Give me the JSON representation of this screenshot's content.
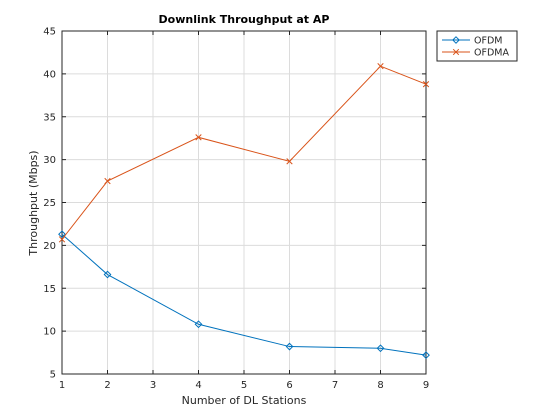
{
  "chart_data": {
    "type": "line",
    "title": "Downlink Throughput at AP",
    "xlabel": "Number of DL Stations",
    "ylabel": "Throughput (Mbps)",
    "xlim": [
      1,
      9
    ],
    "ylim": [
      5,
      45
    ],
    "xticks": [
      1,
      2,
      3,
      4,
      5,
      6,
      7,
      8,
      9
    ],
    "yticks": [
      5,
      10,
      15,
      20,
      25,
      30,
      35,
      40,
      45
    ],
    "grid": true,
    "legend_position": "outside-top-right",
    "series": [
      {
        "name": "OFDM",
        "color": "#0072BD",
        "marker": "diamond",
        "x": [
          1,
          2,
          4,
          6,
          8,
          9
        ],
        "y": [
          21.3,
          16.6,
          10.8,
          8.2,
          8.0,
          7.2
        ]
      },
      {
        "name": "OFDMA",
        "color": "#D95319",
        "marker": "x",
        "x": [
          1,
          2,
          4,
          6,
          8,
          9
        ],
        "y": [
          20.7,
          27.5,
          32.6,
          29.8,
          40.9,
          38.8
        ]
      }
    ]
  }
}
